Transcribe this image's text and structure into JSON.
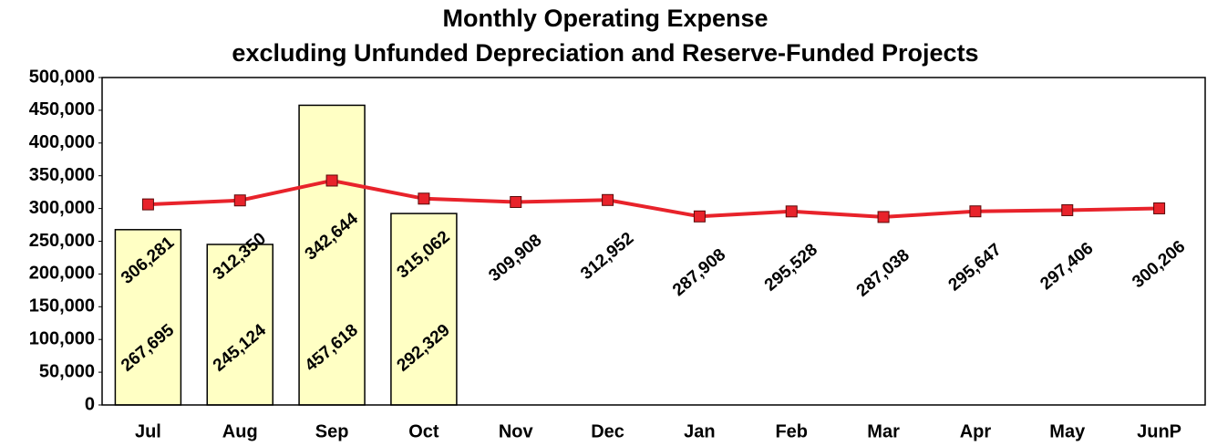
{
  "chart_data": {
    "type": "bar",
    "title": [
      "Monthly Operating Expense",
      "excluding Unfunded Depreciation and Reserve-Funded Projects"
    ],
    "categories": [
      "Jul",
      "Aug",
      "Sep",
      "Oct",
      "Nov",
      "Dec",
      "Jan",
      "Feb",
      "Mar",
      "Apr",
      "May",
      "JunP"
    ],
    "series": [
      {
        "type": "bar",
        "color": "#ffffc4",
        "values": [
          267695,
          245124,
          457618,
          292329,
          null,
          null,
          null,
          null,
          null,
          null,
          null,
          null
        ],
        "value_labels": [
          "267,695",
          "245,124",
          "457,618",
          "292,329",
          null,
          null,
          null,
          null,
          null,
          null,
          null,
          null
        ]
      },
      {
        "type": "line",
        "color": "#e8232b",
        "values": [
          306281,
          312350,
          342644,
          315062,
          309908,
          312952,
          287908,
          295528,
          287038,
          295647,
          297406,
          300206
        ],
        "value_labels": [
          "306,281",
          "312,350",
          "342,644",
          "315,062",
          "309,908",
          "312,952",
          "287,908",
          "295,528",
          "287,038",
          "295,647",
          "297,406",
          "300,206"
        ]
      }
    ],
    "ylim": [
      0,
      500000
    ],
    "yticks": [
      0,
      {
        "value": 50000,
        "label": "50,000"
      },
      {
        "value": 100000,
        "label": "100,000"
      },
      {
        "value": 150000,
        "label": "150,000"
      },
      {
        "value": 200000,
        "label": "200,000"
      },
      {
        "value": 250000,
        "label": "250,000"
      },
      {
        "value": 300000,
        "label": "300,000"
      },
      {
        "value": 350000,
        "label": "350,000"
      },
      {
        "value": 400000,
        "label": "400,000"
      },
      {
        "value": 450000,
        "label": "450,000"
      },
      {
        "value": 500000,
        "label": "500,000"
      }
    ]
  }
}
